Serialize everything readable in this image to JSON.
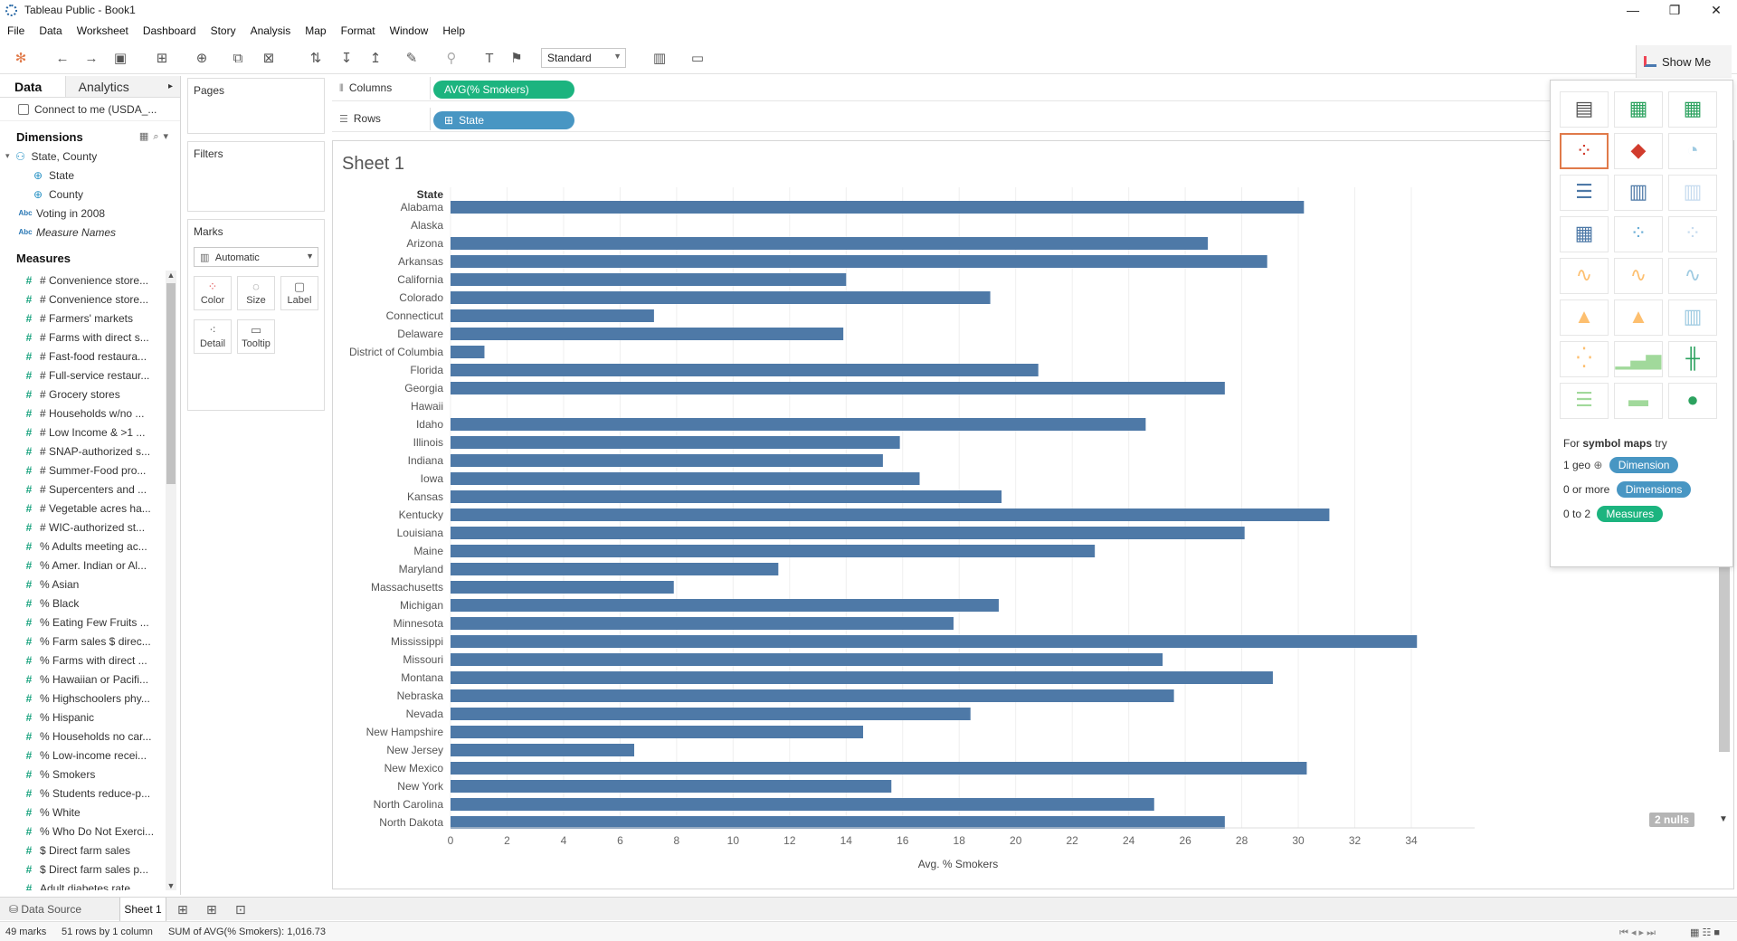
{
  "window": {
    "title": "Tableau Public - Book1",
    "minimize": "—",
    "restore": "❐",
    "close": "✕"
  },
  "menu": [
    "File",
    "Data",
    "Worksheet",
    "Dashboard",
    "Story",
    "Analysis",
    "Map",
    "Format",
    "Window",
    "Help"
  ],
  "toolbar": {
    "fit": "Standard",
    "show_me": "Show Me"
  },
  "data_pane": {
    "tab_data": "Data",
    "tab_analytics": "Analytics",
    "datasource": "Connect to me (USDA_...",
    "dimensions_header": "Dimensions",
    "dimensions": [
      {
        "label": "State, County",
        "icon": "hierarchy-icon"
      },
      {
        "label": "State",
        "icon": "globe-icon"
      },
      {
        "label": "County",
        "icon": "globe-icon"
      },
      {
        "label": "Voting in 2008",
        "icon": "abc-icon"
      },
      {
        "label": "Measure Names",
        "icon": "abc-icon"
      }
    ],
    "measures_header": "Measures",
    "measures": [
      "# Convenience store...",
      "# Convenience store...",
      "# Farmers' markets",
      "# Farms with direct s...",
      "# Fast-food restaura...",
      "# Full-service restaur...",
      "# Grocery stores",
      "# Households w/no ...",
      "# Low Income & >1 ...",
      "# SNAP-authorized s...",
      "# Summer-Food pro...",
      "# Supercenters and ...",
      "# Vegetable acres ha...",
      "# WIC-authorized st...",
      "% Adults meeting ac...",
      "% Amer. Indian or Al...",
      "% Asian",
      "% Black",
      "% Eating Few Fruits ...",
      "% Farm sales $ direc...",
      "% Farms with direct ...",
      "% Hawaiian or Pacifi...",
      "% Highschoolers phy...",
      "% Hispanic",
      "% Households no car...",
      "% Low-income recei...",
      "% Smokers",
      "% Students reduce-p...",
      "% White",
      "% Who Do Not Exerci...",
      "$ Direct farm sales",
      "$ Direct farm sales p...",
      "Adult diabetes rate"
    ]
  },
  "cards": {
    "pages": "Pages",
    "filters": "Filters",
    "marks": "Marks",
    "marks_type": "Automatic",
    "mark_buttons": [
      "Color",
      "Size",
      "Label",
      "Detail",
      "Tooltip"
    ]
  },
  "shelves": {
    "columns_label": "Columns",
    "columns_pill": "AVG(% Smokers)",
    "rows_label": "Rows",
    "rows_pill": "State"
  },
  "sheet": {
    "title": "Sheet 1",
    "nulls": "2 nulls"
  },
  "chart_data": {
    "type": "bar",
    "orientation": "horizontal",
    "row_header": "State",
    "xlabel": "Avg. % Smokers",
    "xlim": [
      0,
      35
    ],
    "xticks": [
      0,
      2,
      4,
      6,
      8,
      10,
      12,
      14,
      16,
      18,
      20,
      22,
      24,
      26,
      28,
      30,
      32,
      34
    ],
    "grid": true,
    "bar_color": "#4e79a7",
    "categories": [
      "Alabama",
      "Alaska",
      "Arizona",
      "Arkansas",
      "California",
      "Colorado",
      "Connecticut",
      "Delaware",
      "District of Columbia",
      "Florida",
      "Georgia",
      "Hawaii",
      "Idaho",
      "Illinois",
      "Indiana",
      "Iowa",
      "Kansas",
      "Kentucky",
      "Louisiana",
      "Maine",
      "Maryland",
      "Massachusetts",
      "Michigan",
      "Minnesota",
      "Mississippi",
      "Missouri",
      "Montana",
      "Nebraska",
      "Nevada",
      "New Hampshire",
      "New Jersey",
      "New Mexico",
      "New York",
      "North Carolina",
      "North Dakota"
    ],
    "values": [
      30.2,
      null,
      26.8,
      28.9,
      14.0,
      19.1,
      7.2,
      13.9,
      1.2,
      20.8,
      27.4,
      null,
      24.6,
      15.9,
      15.3,
      16.6,
      19.5,
      31.1,
      28.1,
      22.8,
      11.6,
      7.9,
      19.4,
      17.8,
      34.2,
      25.2,
      29.1,
      25.6,
      18.4,
      14.6,
      6.5,
      30.3,
      15.6,
      24.9,
      27.4
    ]
  },
  "show_me": {
    "hint_prefix": "For",
    "hint_bold": "symbol maps",
    "hint_suffix": "try",
    "req1_label": "1 geo",
    "req1_pill": "Dimension",
    "req2_label": "0 or more",
    "req2_pill": "Dimensions",
    "req3_label": "0 to 2",
    "req3_pill": "Measures"
  },
  "bottom": {
    "datasource_tab": "Data Source",
    "sheet_tab": "Sheet 1",
    "status_marks": "49 marks",
    "status_rows": "51 rows by 1 column",
    "status_sum": "SUM of AVG(% Smokers): 1,016.73"
  },
  "colors": {
    "bar": "#4e79a7",
    "pill_green": "#1cb47f",
    "pill_blue": "#4896c3",
    "selected_thumb": "#e07a4a"
  }
}
